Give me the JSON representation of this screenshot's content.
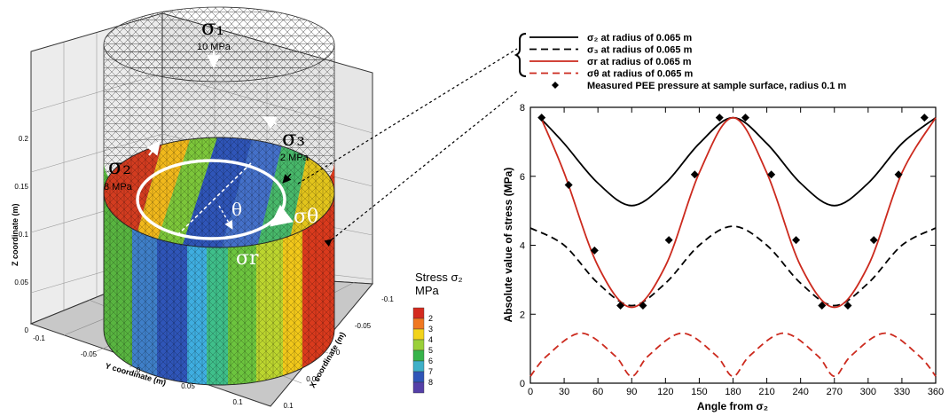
{
  "model": {
    "axes": {
      "z_label": "Z coordinate (m)",
      "y_label": "Y coordinate (m)",
      "x_label": "X coordinate (m)",
      "z_ticks": [
        "0",
        "0.05",
        "0.1",
        "0.15",
        "0.2"
      ],
      "y_ticks": [
        "-0.1",
        "-0.05",
        "0",
        "0.05",
        "0.1"
      ],
      "x_ticks": [
        "-0.1",
        "-0.05",
        "0",
        "0.05",
        "0.1"
      ]
    },
    "annotations": {
      "sigma1": "σ₁",
      "sigma1_value": "10 MPa",
      "sigma2": "σ₂",
      "sigma2_value": "8 MPa",
      "sigma3": "σ₃",
      "sigma3_value": "2 MPa",
      "sigma_theta": "σθ",
      "sigma_r": "σr",
      "theta": "θ"
    },
    "colorbar": {
      "title_line1": "Stress σ₂",
      "title_line2": "MPa",
      "levels": [
        "2",
        "3",
        "4",
        "5",
        "6",
        "7",
        "8"
      ],
      "colors": [
        "#d42a1f",
        "#f07820",
        "#f2d31a",
        "#9ad03a",
        "#36b34a",
        "#3fb0c8",
        "#2f55b8",
        "#5540a8"
      ]
    }
  },
  "chart_data": {
    "type": "line",
    "xlabel": "Angle from σ₂",
    "ylabel": "Absolute value of stress (MPa)",
    "xlim": [
      0,
      360
    ],
    "ylim": [
      0,
      8
    ],
    "xticks": [
      "0",
      "30",
      "60",
      "90",
      "120",
      "150",
      "180",
      "210",
      "240",
      "270",
      "300",
      "330",
      "360"
    ],
    "yticks": [
      "0",
      "2",
      "4",
      "6",
      "8"
    ],
    "grid": false,
    "legend_placement": "top",
    "series": [
      {
        "name": "σ₂ at radius of 0.065 m",
        "color": "#000000",
        "dash": "solid",
        "x": [
          10,
          30,
          60,
          90,
          120,
          150,
          180,
          210,
          240,
          270,
          300,
          330,
          360
        ],
        "y": [
          7.65,
          6.95,
          5.8,
          5.15,
          5.8,
          6.95,
          7.7,
          6.95,
          5.8,
          5.15,
          5.8,
          6.95,
          7.7
        ]
      },
      {
        "name": "σ₃ at radius of 0.065 m",
        "color": "#000000",
        "dash": "dashed",
        "x": [
          0,
          30,
          60,
          90,
          120,
          150,
          180,
          210,
          240,
          270,
          300,
          330,
          360
        ],
        "y": [
          4.5,
          4.0,
          2.9,
          2.25,
          2.9,
          4.0,
          4.55,
          4.0,
          2.9,
          2.25,
          2.9,
          4.0,
          4.5
        ]
      },
      {
        "name": "σr at radius of 0.065 m",
        "color": "#cc2a1e",
        "dash": "solid",
        "x": [
          10,
          30,
          60,
          90,
          120,
          150,
          180,
          210,
          240,
          270,
          300,
          330,
          360
        ],
        "y": [
          7.65,
          6.1,
          3.4,
          2.2,
          3.4,
          6.1,
          7.7,
          6.1,
          3.4,
          2.2,
          3.4,
          6.1,
          7.7
        ]
      },
      {
        "name": "σθ at radius of 0.065 m",
        "color": "#cc2a1e",
        "dash": "dashed",
        "x": [
          0,
          15,
          45,
          75,
          90,
          105,
          135,
          165,
          180,
          195,
          225,
          255,
          270,
          285,
          315,
          345,
          360
        ],
        "y": [
          0.2,
          0.8,
          1.45,
          0.8,
          0.2,
          0.8,
          1.45,
          0.8,
          0.2,
          0.8,
          1.45,
          0.8,
          0.2,
          0.8,
          1.45,
          0.8,
          0.2
        ]
      },
      {
        "name": "Measured PEE pressure at sample surface, radius 0.1 m",
        "color": "#000000",
        "dash": "markers",
        "x": [
          10,
          34,
          57,
          80,
          100,
          123,
          146,
          168,
          191,
          214,
          236,
          259,
          282,
          305,
          327,
          350
        ],
        "y": [
          7.7,
          5.75,
          3.85,
          2.25,
          2.25,
          4.15,
          6.05,
          7.7,
          7.7,
          6.05,
          4.15,
          2.25,
          2.25,
          4.15,
          6.05,
          7.7
        ]
      }
    ]
  }
}
